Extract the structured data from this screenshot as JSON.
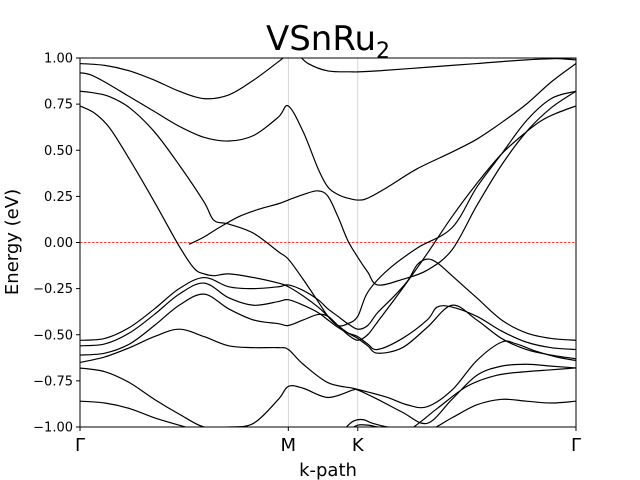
{
  "chart_data": {
    "type": "line",
    "title": {
      "main": "VSnRu",
      "subscript": "2"
    },
    "xlabel": "k-path",
    "ylabel": "Energy (eV)",
    "xlim": [
      0,
      1
    ],
    "ylim": [
      -1.0,
      1.0
    ],
    "yticks": [
      1.0,
      0.75,
      0.5,
      0.25,
      0.0,
      -0.25,
      -0.5,
      -0.75,
      -1.0
    ],
    "ytick_labels": [
      "1.00",
      "0.75",
      "0.50",
      "0.25",
      "0.00",
      "−0.25",
      "−0.50",
      "−0.75",
      "−1.00"
    ],
    "kpoints": [
      {
        "label": "Γ",
        "x": 0.0
      },
      {
        "label": "M",
        "x": 0.42
      },
      {
        "label": "K",
        "x": 0.56
      },
      {
        "label": "Γ",
        "x": 1.0
      }
    ],
    "fermi_level": {
      "y": 0.0,
      "color": "#ff0000",
      "style": "dashed"
    },
    "grid": {
      "vertical_at_kpoints": true,
      "color": "#cccccc"
    },
    "line_color": "#000000",
    "series": [
      {
        "x": [
          0,
          0.05,
          0.1,
          0.15,
          0.2,
          0.25,
          0.3,
          0.35,
          0.4,
          0.42,
          0.45,
          0.5,
          0.55,
          0.56,
          0.6,
          0.7,
          0.8,
          0.9,
          1.0
        ],
        "y": [
          0.97,
          0.96,
          0.93,
          0.88,
          0.82,
          0.78,
          0.8,
          0.88,
          0.98,
          1.02,
          1.06,
          1.08,
          1.06,
          1.05,
          1.05,
          1.04,
          1.03,
          1.01,
          0.99
        ]
      },
      {
        "x": [
          0.44,
          0.46,
          0.5,
          0.55,
          0.56,
          0.6,
          0.7,
          0.8,
          0.9,
          1.0
        ],
        "y": [
          1.02,
          0.97,
          0.93,
          0.925,
          0.925,
          0.93,
          0.95,
          0.97,
          0.99,
          1.0
        ]
      },
      {
        "x": [
          0,
          0.02,
          0.05,
          0.1,
          0.15,
          0.2,
          0.25,
          0.3,
          0.35,
          0.4,
          0.42,
          0.45,
          0.48,
          0.5,
          0.52,
          0.54,
          0.56,
          0.58,
          0.62,
          0.68,
          0.75,
          0.8,
          0.85,
          0.9,
          0.95,
          1.0
        ],
        "y": [
          0.92,
          0.91,
          0.87,
          0.79,
          0.71,
          0.63,
          0.57,
          0.55,
          0.58,
          0.68,
          0.74,
          0.6,
          0.4,
          0.3,
          0.26,
          0.24,
          0.23,
          0.24,
          0.3,
          0.4,
          0.49,
          0.56,
          0.65,
          0.75,
          0.87,
          0.97
        ]
      },
      {
        "x": [
          0,
          0.03,
          0.06,
          0.1,
          0.15,
          0.2,
          0.25,
          0.27,
          0.3,
          0.35,
          0.4,
          0.42,
          0.45,
          0.48,
          0.5,
          0.52,
          0.54,
          0.56,
          0.58,
          0.62,
          0.68,
          0.75,
          0.8,
          0.85,
          0.9,
          0.95,
          1.0
        ],
        "y": [
          0.82,
          0.81,
          0.79,
          0.73,
          0.6,
          0.42,
          0.22,
          0.12,
          0.1,
          0.05,
          -0.05,
          -0.09,
          -0.2,
          -0.32,
          -0.4,
          -0.45,
          -0.44,
          -0.4,
          -0.27,
          -0.15,
          -0.03,
          0.08,
          0.3,
          0.48,
          0.66,
          0.78,
          0.82
        ]
      },
      {
        "x": [
          0,
          0.03,
          0.06,
          0.1,
          0.15,
          0.2,
          0.23,
          0.25,
          0.27,
          0.3,
          0.35,
          0.4,
          0.42,
          0.45,
          0.48,
          0.5,
          0.52,
          0.54,
          0.56,
          0.58,
          0.6,
          0.65,
          0.7,
          0.75,
          0.8,
          0.85,
          0.9,
          0.93,
          0.96,
          1.0
        ],
        "y": [
          0.74,
          0.7,
          0.62,
          0.45,
          0.22,
          -0.02,
          -0.14,
          -0.17,
          -0.18,
          -0.17,
          -0.19,
          -0.22,
          -0.24,
          -0.29,
          -0.35,
          -0.4,
          -0.45,
          -0.5,
          -0.53,
          -0.5,
          -0.43,
          -0.25,
          -0.06,
          0.14,
          0.32,
          0.48,
          0.6,
          0.66,
          0.7,
          0.74
        ]
      },
      {
        "x": [
          0.22,
          0.25,
          0.28,
          0.32,
          0.36,
          0.4,
          0.42,
          0.45,
          0.48,
          0.5,
          0.52,
          0.54,
          0.56,
          0.58,
          0.6,
          0.65,
          0.7,
          0.75,
          0.8,
          0.85,
          0.9,
          0.95,
          1.0
        ],
        "y": [
          -0.01,
          0.03,
          0.08,
          0.14,
          0.18,
          0.21,
          0.23,
          0.26,
          0.28,
          0.25,
          0.14,
          0.01,
          -0.08,
          -0.16,
          -0.23,
          -0.2,
          -0.15,
          -0.04,
          0.2,
          0.42,
          0.6,
          0.73,
          0.82
        ]
      },
      {
        "x": [
          0,
          0.05,
          0.1,
          0.15,
          0.2,
          0.25,
          0.3,
          0.35,
          0.4,
          0.42,
          0.45,
          0.48,
          0.5,
          0.52,
          0.54,
          0.56,
          0.58,
          0.6,
          0.63,
          0.66,
          0.68,
          0.7,
          0.72,
          0.75,
          0.8,
          0.85,
          0.9,
          0.95,
          1.0
        ],
        "y": [
          -0.53,
          -0.52,
          -0.46,
          -0.36,
          -0.25,
          -0.19,
          -0.24,
          -0.25,
          -0.24,
          -0.23,
          -0.26,
          -0.31,
          -0.36,
          -0.4,
          -0.44,
          -0.47,
          -0.45,
          -0.38,
          -0.3,
          -0.21,
          -0.12,
          -0.09,
          -0.11,
          -0.18,
          -0.3,
          -0.42,
          -0.49,
          -0.52,
          -0.53
        ]
      },
      {
        "x": [
          0,
          0.05,
          0.1,
          0.15,
          0.2,
          0.25,
          0.3,
          0.35,
          0.4,
          0.42,
          0.45,
          0.48,
          0.5,
          0.52,
          0.54,
          0.56,
          0.58,
          0.6,
          0.65,
          0.7,
          0.72,
          0.75,
          0.8,
          0.85,
          0.9,
          0.95,
          1.0
        ],
        "y": [
          -0.56,
          -0.55,
          -0.49,
          -0.39,
          -0.28,
          -0.22,
          -0.3,
          -0.34,
          -0.32,
          -0.31,
          -0.34,
          -0.38,
          -0.42,
          -0.46,
          -0.49,
          -0.51,
          -0.55,
          -0.58,
          -0.52,
          -0.42,
          -0.35,
          -0.35,
          -0.4,
          -0.48,
          -0.54,
          -0.57,
          -0.58
        ]
      },
      {
        "x": [
          0,
          0.05,
          0.1,
          0.15,
          0.2,
          0.25,
          0.3,
          0.35,
          0.4,
          0.42,
          0.45,
          0.48,
          0.5,
          0.52,
          0.54,
          0.56,
          0.58,
          0.6,
          0.65,
          0.7,
          0.75,
          0.8,
          0.85,
          0.9,
          0.95,
          1.0
        ],
        "y": [
          -0.61,
          -0.6,
          -0.55,
          -0.45,
          -0.34,
          -0.28,
          -0.36,
          -0.42,
          -0.44,
          -0.45,
          -0.42,
          -0.39,
          -0.4,
          -0.45,
          -0.49,
          -0.52,
          -0.56,
          -0.6,
          -0.57,
          -0.46,
          -0.34,
          -0.42,
          -0.52,
          -0.58,
          -0.61,
          -0.63
        ]
      },
      {
        "x": [
          0,
          0.05,
          0.1,
          0.15,
          0.2,
          0.25,
          0.3,
          0.35,
          0.4,
          0.42,
          0.45,
          0.5,
          0.55,
          0.58,
          0.62,
          0.66,
          0.7,
          0.75,
          0.8,
          0.85,
          0.88,
          0.92,
          0.96,
          1.0
        ],
        "y": [
          -0.65,
          -0.62,
          -0.57,
          -0.51,
          -0.47,
          -0.51,
          -0.56,
          -0.57,
          -0.57,
          -0.58,
          -0.66,
          -0.76,
          -0.79,
          -0.81,
          -0.84,
          -0.88,
          -0.89,
          -0.8,
          -0.64,
          -0.54,
          -0.55,
          -0.59,
          -0.62,
          -0.64
        ]
      },
      {
        "x": [
          0,
          0.05,
          0.1,
          0.15,
          0.2,
          0.25,
          0.3,
          0.35,
          0.4,
          0.42,
          0.45,
          0.5,
          0.55,
          0.56,
          0.6,
          0.65,
          0.7,
          0.75,
          0.8,
          0.85,
          0.9,
          0.95,
          1.0
        ],
        "y": [
          -0.68,
          -0.7,
          -0.76,
          -0.85,
          -0.93,
          -1.0,
          -1.0,
          -0.98,
          -0.85,
          -0.78,
          -0.79,
          -0.84,
          -0.8,
          -0.8,
          -0.85,
          -0.92,
          -0.98,
          -0.85,
          -0.72,
          -0.67,
          -0.66,
          -0.67,
          -0.68
        ]
      },
      {
        "x": [
          0,
          0.05,
          0.1,
          0.15,
          0.2,
          0.24
        ],
        "y": [
          -0.86,
          -0.87,
          -0.9,
          -0.95,
          -0.99,
          -1.02
        ]
      },
      {
        "x": [
          0.53,
          0.55,
          0.57,
          0.59,
          0.62,
          0.65,
          0.7,
          0.75,
          0.8,
          0.85,
          0.9,
          0.95,
          1.0
        ],
        "y": [
          -1.02,
          -0.97,
          -0.96,
          -0.98,
          -1.0,
          -1.01,
          -1.02,
          -0.95,
          -0.88,
          -0.85,
          -0.86,
          -0.87,
          -0.86
        ]
      },
      {
        "x": [
          0.54,
          0.56,
          0.58,
          0.6,
          0.62,
          0.66,
          0.72,
          0.78,
          0.84,
          0.9,
          0.95,
          1.0
        ],
        "y": [
          -1.02,
          -0.99,
          -0.99,
          -1.0,
          -1.01,
          -1.02,
          -0.9,
          -0.78,
          -0.72,
          -0.7,
          -0.69,
          -0.68
        ]
      }
    ]
  }
}
